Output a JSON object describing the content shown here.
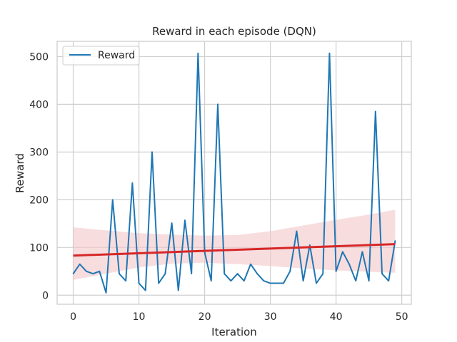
{
  "chart_data": {
    "type": "line",
    "title": "Reward in each episode (DQN)",
    "xlabel": "Iteration",
    "ylabel": "Reward",
    "xlim": [
      -2.45,
      51.45
    ],
    "ylim": [
      -19,
      532
    ],
    "xticks": [
      0,
      10,
      20,
      30,
      40,
      50
    ],
    "yticks": [
      0,
      100,
      200,
      300,
      400,
      500
    ],
    "grid": true,
    "legend": {
      "placement": "top-left",
      "entries": [
        "Reward"
      ]
    },
    "colors": {
      "series": "#1f77b4",
      "trend": "#d62728",
      "band": "#f4c6c8",
      "grid": "#cfcfcf",
      "axes": "#cccccc"
    },
    "series": [
      {
        "name": "Reward",
        "x": [
          0,
          1,
          2,
          3,
          4,
          5,
          6,
          7,
          8,
          9,
          10,
          11,
          12,
          13,
          14,
          15,
          16,
          17,
          18,
          19,
          20,
          21,
          22,
          23,
          24,
          25,
          26,
          27,
          28,
          29,
          30,
          31,
          32,
          33,
          34,
          35,
          36,
          37,
          38,
          39,
          40,
          41,
          42,
          43,
          44,
          45,
          46,
          47,
          48,
          49
        ],
        "values": [
          45,
          65,
          50,
          45,
          50,
          5,
          200,
          45,
          30,
          235,
          25,
          10,
          300,
          25,
          45,
          151,
          10,
          157,
          45,
          507,
          90,
          30,
          400,
          45,
          30,
          45,
          30,
          65,
          45,
          30,
          25,
          25,
          25,
          50,
          134,
          30,
          105,
          25,
          45,
          507,
          50,
          91,
          65,
          30,
          91,
          30,
          385,
          45,
          30,
          114
        ]
      }
    ],
    "trend": {
      "x": [
        0,
        49
      ],
      "y": [
        83,
        107
      ],
      "ci_x": [
        0,
        5,
        10,
        15,
        20,
        25,
        30,
        35,
        40,
        45,
        49
      ],
      "ci_lower": [
        32,
        45,
        58,
        66,
        68,
        65,
        61,
        56,
        52,
        49,
        47
      ],
      "ci_upper": [
        142,
        136,
        130,
        127,
        125,
        126,
        134,
        146,
        158,
        169,
        179
      ]
    }
  }
}
